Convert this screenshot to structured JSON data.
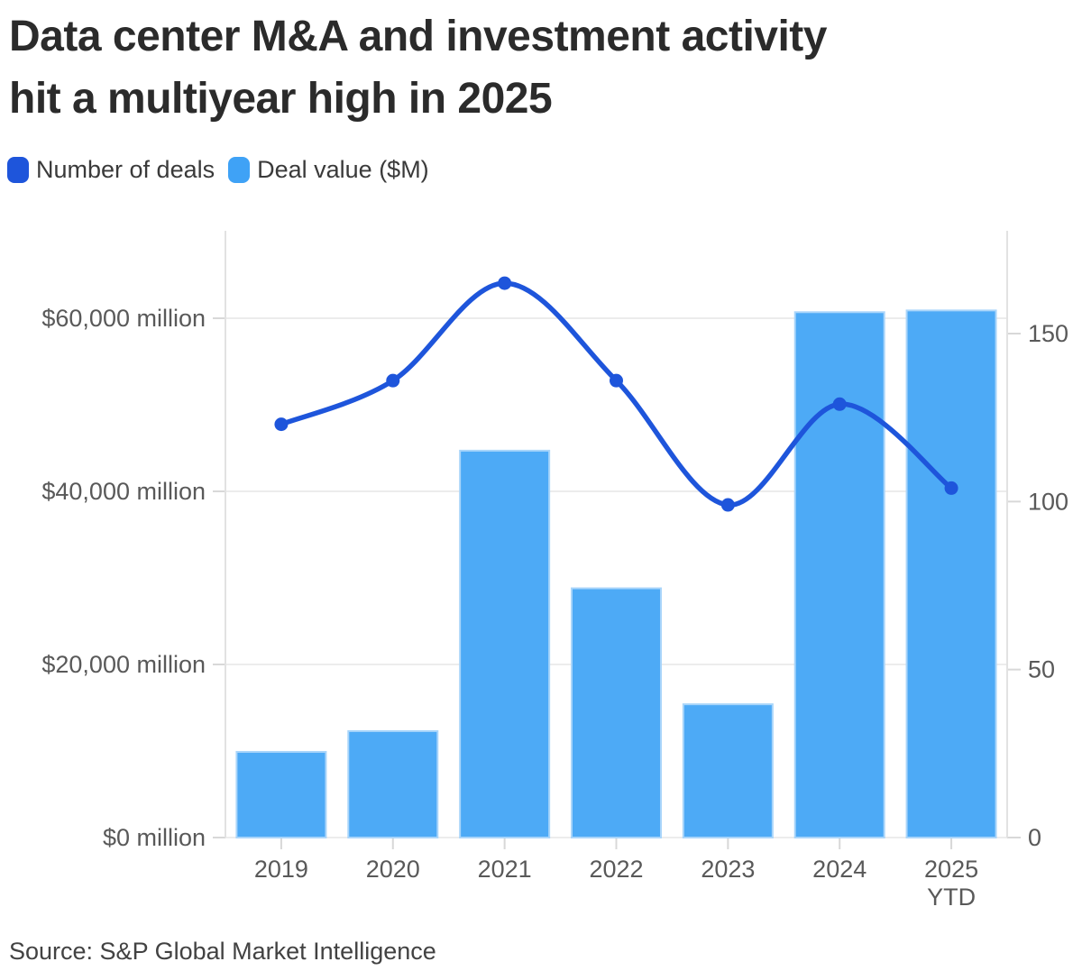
{
  "title": {
    "line1": "Data center M&A and investment activity",
    "line2": "hit a multiyear high in 2025",
    "full": "Data center M&A and investment activity hit a multiyear high in 2025"
  },
  "legend": {
    "items": [
      {
        "label": "Number of deals",
        "color": "#1E55DB"
      },
      {
        "label": "Deal value ($M)",
        "color": "#3FA2F6"
      }
    ]
  },
  "source": "Source: S&P Global Market Intelligence",
  "chart_data": {
    "type": "combo",
    "categories": [
      "2019",
      "2020",
      "2021",
      "2022",
      "2023",
      "2024",
      "2025 YTD"
    ],
    "series": [
      {
        "name": "Number of deals",
        "type": "line",
        "axis": "right",
        "color": "#1E55DB",
        "values": [
          123,
          136,
          165,
          136,
          99,
          129,
          104
        ]
      },
      {
        "name": "Deal value ($M)",
        "type": "bar",
        "axis": "left",
        "color": "#4DAAF6",
        "border_color": "#A9D5FA",
        "values": [
          9900,
          12300,
          44700,
          28800,
          15400,
          60700,
          60900
        ]
      }
    ],
    "left_axis": {
      "title": "",
      "unit": "$M",
      "ticks": [
        0,
        20000,
        40000,
        60000
      ],
      "tick_labels": [
        "$0 million",
        "$20,000 million",
        "$40,000 million",
        "$60,000 million"
      ],
      "range": [
        0,
        70000
      ]
    },
    "right_axis": {
      "title": "",
      "ticks": [
        0,
        50,
        100,
        150
      ],
      "tick_labels": [
        "0",
        "50",
        "100",
        "150"
      ],
      "range": [
        0,
        181
      ]
    },
    "grid": "horizontal",
    "legend_position": "top-left"
  }
}
